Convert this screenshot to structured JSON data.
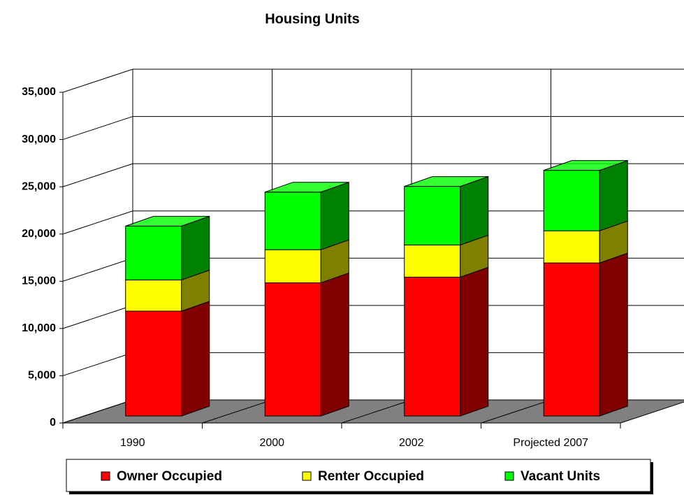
{
  "chart_data": {
    "type": "bar3d_stacked",
    "title": "Housing Units",
    "categories": [
      "1990",
      "2000",
      "2002",
      "Projected 2007"
    ],
    "series": [
      {
        "name": "Owner Occupied",
        "color": "#ff0000",
        "side_color": "#800000",
        "values": [
          11100,
          14100,
          14700,
          16200
        ]
      },
      {
        "name": "Renter Occupied",
        "color": "#ffff00",
        "side_color": "#808000",
        "values": [
          3300,
          3500,
          3400,
          3400
        ]
      },
      {
        "name": "Vacant Units",
        "color": "#00ff00",
        "side_color": "#008000",
        "values": [
          5700,
          6100,
          6200,
          6400
        ]
      }
    ],
    "ylim": [
      0,
      35000
    ],
    "yticks": [
      {
        "value": 0,
        "label": "0"
      },
      {
        "value": 5000,
        "label": "5,000"
      },
      {
        "value": 10000,
        "label": "10,000"
      },
      {
        "value": 15000,
        "label": "15,000"
      },
      {
        "value": 20000,
        "label": "20,000"
      },
      {
        "value": 25000,
        "label": "25,000"
      },
      {
        "value": 30000,
        "label": "30,000"
      },
      {
        "value": 35000,
        "label": "35,000"
      }
    ],
    "grid": true
  }
}
